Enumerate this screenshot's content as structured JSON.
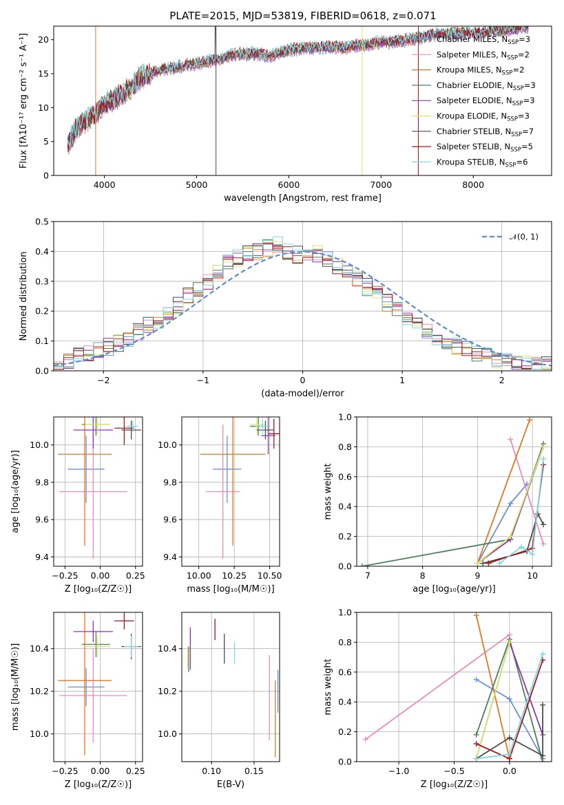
{
  "title": "PLATE=2015, MJD=53819, FIBERID=0618, z=0.071",
  "colors": {
    "Chabrier MILES": "#6a8fd9",
    "Salpeter MILES": "#e88bbd",
    "Kroupa MILES": "#e3761e",
    "Chabrier ELODIE": "#4e7d5c",
    "Salpeter ELODIE": "#8a35b8",
    "Kroupa ELODIE": "#d8e86a",
    "Chabrier STELIB": "#4a4a4a",
    "Salpeter STELIB": "#a81419",
    "Kroupa STELIB": "#7fd8dc"
  },
  "models": [
    "Chabrier MILES",
    "Salpeter MILES",
    "Kroupa MILES",
    "Chabrier ELODIE",
    "Salpeter ELODIE",
    "Kroupa ELODIE",
    "Chabrier STELIB",
    "Salpeter STELIB",
    "Kroupa STELIB"
  ],
  "chart_data": [
    {
      "id": "spectrum",
      "type": "line",
      "title": "PLATE=2015, MJD=53819, FIBERID=0618, z=0.071",
      "xlabel": "wavelength [Angstrom, rest frame]",
      "ylabel": "Flux [fλ10⁻¹⁷ erg cm⁻² s⁻¹ A⁻¹]",
      "xlim": [
        3450,
        8850
      ],
      "ylim": [
        0,
        22
      ],
      "xticks": [
        "4000",
        "5000",
        "6000",
        "7000",
        "8000"
      ],
      "yticks": [
        "0",
        "5",
        "10",
        "15",
        "20"
      ],
      "grid": false,
      "legend_position": "upper-right",
      "series_x": [
        3600,
        3700,
        3800,
        3900,
        4000,
        4200,
        4400,
        4600,
        4800,
        5000,
        5200,
        5400,
        5600,
        5800,
        6000,
        6200,
        6400,
        6600,
        6800,
        7000,
        7200,
        7400,
        7600,
        8000,
        8400,
        8600
      ],
      "series_y": [
        4.5,
        7,
        8,
        9,
        10.5,
        12,
        14.5,
        15.5,
        16,
        16.5,
        17,
        17.8,
        18,
        17.6,
        18.5,
        18.7,
        19,
        18.8,
        19.2,
        19.6,
        19.8,
        20.2,
        20.8,
        21,
        21.5,
        22
      ],
      "legend": [
        {
          "name": "Chabrier MILES, N_SSP=3",
          "model": "Chabrier MILES",
          "base": "Chabrier MILES, N",
          "sub": "SSP",
          "tail": "=3"
        },
        {
          "name": "Salpeter MILES, N_SSP=2",
          "model": "Salpeter MILES",
          "base": "Salpeter MILES, N",
          "sub": "SSP",
          "tail": "=2"
        },
        {
          "name": "Kroupa MILES, N_SSP=2",
          "model": "Kroupa MILES",
          "base": "Kroupa MILES, N",
          "sub": "SSP",
          "tail": "=2"
        },
        {
          "name": "Chabrier ELODIE, N_SSP=3",
          "model": "Chabrier ELODIE",
          "base": "Chabrier ELODIE, N",
          "sub": "SSP",
          "tail": "=3"
        },
        {
          "name": "Salpeter ELODIE, N_SSP=3",
          "model": "Salpeter ELODIE",
          "base": "Salpeter ELODIE, N",
          "sub": "SSP",
          "tail": "=3"
        },
        {
          "name": "Kroupa ELODIE, N_SSP=3",
          "model": "Kroupa ELODIE",
          "base": "Kroupa ELODIE, N",
          "sub": "SSP",
          "tail": "=3"
        },
        {
          "name": "Chabrier STELIB, N_SSP=7",
          "model": "Chabrier STELIB",
          "base": "Chabrier STELIB, N",
          "sub": "SSP",
          "tail": "=7"
        },
        {
          "name": "Salpeter STELIB, N_SSP=5",
          "model": "Salpeter STELIB",
          "base": "Salpeter STELIB, N",
          "sub": "SSP",
          "tail": "=5"
        },
        {
          "name": "Kroupa STELIB, N_SSP=6",
          "model": "Kroupa STELIB",
          "base": "Kroupa STELIB, N",
          "sub": "SSP",
          "tail": "=6"
        }
      ]
    },
    {
      "id": "residuals",
      "type": "area",
      "xlabel": "(data-model)/error",
      "ylabel": "Normed distribution",
      "xlim": [
        -2.5,
        2.5
      ],
      "ylim": [
        0,
        0.5
      ],
      "xticks": [
        "−2",
        "−1",
        "0",
        "1",
        "2"
      ],
      "yticks": [
        "0.0",
        "0.1",
        "0.2",
        "0.3",
        "0.4",
        "0.5"
      ],
      "grid": true,
      "legend_position": "upper-right",
      "reference_curve": "𝒩(0, 1)",
      "bin_width": 0.1,
      "histogram_envelope": [
        0.02,
        0.03,
        0.05,
        0.06,
        0.07,
        0.08,
        0.09,
        0.11,
        0.13,
        0.15,
        0.17,
        0.2,
        0.22,
        0.25,
        0.28,
        0.3,
        0.33,
        0.36,
        0.38,
        0.39,
        0.4,
        0.41,
        0.42,
        0.4,
        0.39,
        0.4,
        0.39,
        0.37,
        0.35,
        0.33,
        0.31,
        0.28,
        0.26,
        0.23,
        0.2,
        0.18,
        0.15,
        0.13,
        0.11,
        0.09,
        0.08,
        0.07,
        0.06,
        0.05,
        0.04,
        0.03,
        0.03,
        0.02,
        0.02,
        0.02
      ]
    },
    {
      "id": "age-vs-Z",
      "type": "scatter",
      "xlabel": "Z [log₁₀(Z/Z☉)]",
      "ylabel": "age  [log₁₀(age/yr)]",
      "xlim": [
        -0.33,
        0.3
      ],
      "ylim": [
        9.35,
        10.15
      ],
      "xticks": [
        "−0.25",
        "0.00",
        "0.25"
      ],
      "yticks": [
        "9.4",
        "9.6",
        "9.8",
        "10.0"
      ],
      "grid": true,
      "errorbars": [
        {
          "model": "Chabrier MILES",
          "x": -0.1,
          "xerr": 0.13,
          "y": 9.87,
          "yerr": 0.18
        },
        {
          "model": "Salpeter MILES",
          "x": -0.05,
          "xerr": 0.24,
          "y": 9.75,
          "yerr": 0.36
        },
        {
          "model": "Kroupa MILES",
          "x": -0.11,
          "xerr": 0.19,
          "y": 9.95,
          "yerr": 0.49
        },
        {
          "model": "Chabrier ELODIE",
          "x": -0.03,
          "xerr": 0.1,
          "y": 10.11,
          "yerr": 0.06
        },
        {
          "model": "Salpeter ELODIE",
          "x": -0.05,
          "xerr": 0.14,
          "y": 10.08,
          "yerr": 0.1
        },
        {
          "model": "Kroupa ELODIE",
          "x": -0.02,
          "xerr": 0.09,
          "y": 10.11,
          "yerr": 0.05
        },
        {
          "model": "Chabrier STELIB",
          "x": 0.22,
          "xerr": 0.07,
          "y": 10.08,
          "yerr": 0.05
        },
        {
          "model": "Salpeter STELIB",
          "x": 0.17,
          "xerr": 0.07,
          "y": 10.09,
          "yerr": 0.09
        },
        {
          "model": "Kroupa STELIB",
          "x": 0.23,
          "xerr": 0.04,
          "y": 10.1,
          "yerr": 0.03
        }
      ]
    },
    {
      "id": "age-vs-mass",
      "type": "scatter",
      "xlabel": "mass [log₁₀(M/M☉)]",
      "ylabel": "",
      "xlim": [
        9.88,
        10.57
      ],
      "ylim": [
        9.35,
        10.15
      ],
      "xticks": [
        "10.00",
        "10.25",
        "10.50"
      ],
      "yticks": [
        "9.4",
        "9.6",
        "9.8",
        "10.0"
      ],
      "grid": true,
      "errorbars": [
        {
          "model": "Chabrier MILES",
          "x": 10.2,
          "xerr": 0.1,
          "y": 9.87,
          "yerr": 0.18
        },
        {
          "model": "Salpeter MILES",
          "x": 10.17,
          "xerr": 0.12,
          "y": 9.75,
          "yerr": 0.36
        },
        {
          "model": "Kroupa MILES",
          "x": 10.24,
          "xerr": 0.23,
          "y": 9.95,
          "yerr": 0.49
        },
        {
          "model": "Chabrier ELODIE",
          "x": 10.42,
          "xerr": 0.06,
          "y": 10.1,
          "yerr": 0.05
        },
        {
          "model": "Salpeter ELODIE",
          "x": 10.49,
          "xerr": 0.05,
          "y": 10.05,
          "yerr": 0.1
        },
        {
          "model": "Kroupa ELODIE",
          "x": 10.41,
          "xerr": 0.05,
          "y": 10.11,
          "yerr": 0.05
        },
        {
          "model": "Chabrier STELIB",
          "x": 10.47,
          "xerr": 0.06,
          "y": 10.08,
          "yerr": 0.05
        },
        {
          "model": "Salpeter STELIB",
          "x": 10.53,
          "xerr": 0.04,
          "y": 10.06,
          "yerr": 0.08
        },
        {
          "model": "Kroupa STELIB",
          "x": 10.45,
          "xerr": 0.05,
          "y": 10.1,
          "yerr": 0.04
        }
      ]
    },
    {
      "id": "massweight-vs-age",
      "type": "line",
      "xlabel": "age  [log₁₀(age/yr)]",
      "ylabel": "mass weight",
      "xlim": [
        6.8,
        10.35
      ],
      "ylim": [
        0,
        1
      ],
      "xticks": [
        "7",
        "8",
        "9",
        "10"
      ],
      "yticks": [
        "0.0",
        "0.2",
        "0.4",
        "0.6",
        "0.8",
        "1.0"
      ],
      "grid": true,
      "series": [
        {
          "model": "Chabrier MILES",
          "x": [
            9.0,
            9.6,
            9.9
          ],
          "y": [
            0.02,
            0.42,
            0.55
          ]
        },
        {
          "model": "Salpeter MILES",
          "x": [
            9.6,
            10.2
          ],
          "y": [
            0.85,
            0.15
          ]
        },
        {
          "model": "Kroupa MILES",
          "x": [
            9.0,
            9.95
          ],
          "y": [
            0.02,
            0.98
          ]
        },
        {
          "model": "Chabrier ELODIE",
          "x": [
            6.9,
            9.6,
            10.2
          ],
          "y": [
            0.0,
            0.18,
            0.82
          ]
        },
        {
          "model": "Salpeter ELODIE",
          "x": [
            9.0,
            9.6,
            10.2
          ],
          "y": [
            0.02,
            0.18,
            0.8
          ]
        },
        {
          "model": "Kroupa ELODIE",
          "x": [
            9.0,
            9.6,
            10.2
          ],
          "y": [
            0.02,
            0.2,
            0.8
          ]
        },
        {
          "model": "Chabrier STELIB",
          "x": [
            9.1,
            9.9,
            10.1,
            10.2
          ],
          "y": [
            0.02,
            0.1,
            0.35,
            0.28
          ]
        },
        {
          "model": "Salpeter STELIB",
          "x": [
            9.2,
            10.0,
            10.2
          ],
          "y": [
            0.02,
            0.12,
            0.68
          ]
        },
        {
          "model": "Kroupa STELIB",
          "x": [
            9.4,
            9.8,
            10.0,
            10.2
          ],
          "y": [
            0.02,
            0.13,
            0.08,
            0.72
          ]
        }
      ]
    },
    {
      "id": "mass-vs-Z",
      "type": "scatter",
      "xlabel": "Z [log₁₀(Z/Z☉)]",
      "ylabel": "mass [log₁₀(M/M☉)]",
      "xlim": [
        -0.33,
        0.3
      ],
      "ylim": [
        9.87,
        10.57
      ],
      "xticks": [
        "−0.25",
        "0.00",
        "0.25"
      ],
      "yticks": [
        "10.0",
        "10.2",
        "10.4"
      ],
      "grid": true,
      "errorbars": [
        {
          "model": "Chabrier MILES",
          "x": -0.1,
          "xerr": 0.13,
          "y": 10.22,
          "yerr": 0.09
        },
        {
          "model": "Salpeter MILES",
          "x": -0.05,
          "xerr": 0.24,
          "y": 10.18,
          "yerr": 0.22
        },
        {
          "model": "Kroupa MILES",
          "x": -0.11,
          "xerr": 0.19,
          "y": 10.25,
          "yerr": 0.35
        },
        {
          "model": "Chabrier ELODIE",
          "x": -0.03,
          "xerr": 0.1,
          "y": 10.42,
          "yerr": 0.06
        },
        {
          "model": "Salpeter ELODIE",
          "x": -0.05,
          "xerr": 0.14,
          "y": 10.48,
          "yerr": 0.05
        },
        {
          "model": "Kroupa ELODIE",
          "x": -0.02,
          "xerr": 0.09,
          "y": 10.41,
          "yerr": 0.05
        },
        {
          "model": "Chabrier STELIB",
          "x": 0.22,
          "xerr": 0.07,
          "y": 10.41,
          "yerr": 0.06
        },
        {
          "model": "Salpeter STELIB",
          "x": 0.17,
          "xerr": 0.07,
          "y": 10.53,
          "yerr": 0.04
        },
        {
          "model": "Kroupa STELIB",
          "x": 0.22,
          "xerr": 0.05,
          "y": 10.41,
          "yerr": 0.05
        }
      ]
    },
    {
      "id": "mass-vs-ebv",
      "type": "scatter",
      "xlabel": "E(B-V)",
      "ylabel": "",
      "xlim": [
        0.065,
        0.18
      ],
      "ylim": [
        9.87,
        10.57
      ],
      "xticks": [
        "0.10",
        "0.15"
      ],
      "yticks": [
        "10.0",
        "10.2",
        "10.4"
      ],
      "grid": true,
      "errorbars": [
        {
          "model": "Chabrier MILES",
          "x": 0.178,
          "xerr": 0,
          "y": 10.2,
          "yerr": 0.1
        },
        {
          "model": "Salpeter MILES",
          "x": 0.168,
          "xerr": 0,
          "y": 10.17,
          "yerr": 0.2
        },
        {
          "model": "Kroupa MILES",
          "x": 0.175,
          "xerr": 0,
          "y": 10.07,
          "yerr": 0.18
        },
        {
          "model": "Chabrier ELODIE",
          "x": 0.073,
          "xerr": 0,
          "y": 10.35,
          "yerr": 0.06
        },
        {
          "model": "Salpeter ELODIE",
          "x": 0.075,
          "xerr": 0,
          "y": 10.4,
          "yerr": 0.1
        },
        {
          "model": "Kroupa ELODIE",
          "x": 0.072,
          "xerr": 0,
          "y": 10.36,
          "yerr": 0.05
        },
        {
          "model": "Chabrier STELIB",
          "x": 0.115,
          "xerr": 0,
          "y": 10.4,
          "yerr": 0.07
        },
        {
          "model": "Salpeter STELIB",
          "x": 0.104,
          "xerr": 0,
          "y": 10.49,
          "yerr": 0.05
        },
        {
          "model": "Kroupa STELIB",
          "x": 0.127,
          "xerr": 0,
          "y": 10.38,
          "yerr": 0.05
        }
      ]
    },
    {
      "id": "massweight-vs-Z",
      "type": "line",
      "xlabel": "Z [log₁₀(Z/Z☉)]",
      "ylabel": "mass weight",
      "xlim": [
        -1.38,
        0.38
      ],
      "ylim": [
        0,
        1
      ],
      "xticks": [
        "−1.0",
        "−0.5",
        "0.0"
      ],
      "yticks": [
        "0.0",
        "0.2",
        "0.4",
        "0.6",
        "0.8",
        "1.0"
      ],
      "grid": true,
      "series": [
        {
          "model": "Chabrier MILES",
          "x": [
            -0.3,
            0.0,
            0.3
          ],
          "y": [
            0.55,
            0.42,
            0.02
          ]
        },
        {
          "model": "Salpeter MILES",
          "x": [
            -1.3,
            0.0
          ],
          "y": [
            0.15,
            0.85
          ]
        },
        {
          "model": "Kroupa MILES",
          "x": [
            -0.3,
            0.0
          ],
          "y": [
            0.98,
            0.02
          ]
        },
        {
          "model": "Chabrier ELODIE",
          "x": [
            -0.3,
            0.0,
            0.3
          ],
          "y": [
            0.18,
            0.82,
            0.0
          ]
        },
        {
          "model": "Salpeter ELODIE",
          "x": [
            -0.3,
            0.0,
            0.3
          ],
          "y": [
            0.02,
            0.8,
            0.18
          ]
        },
        {
          "model": "Kroupa ELODIE",
          "x": [
            -0.3,
            0.0
          ],
          "y": [
            0.02,
            0.8
          ]
        },
        {
          "model": "Chabrier STELIB",
          "x": [
            -0.3,
            0.0,
            0.3,
            0.3
          ],
          "y": [
            0.02,
            0.16,
            0.04,
            0.38
          ]
        },
        {
          "model": "Salpeter STELIB",
          "x": [
            -0.3,
            0.0,
            0.3
          ],
          "y": [
            0.12,
            0.02,
            0.68
          ]
        },
        {
          "model": "Kroupa STELIB",
          "x": [
            -0.3,
            0.0,
            0.3
          ],
          "y": [
            0.02,
            0.05,
            0.72
          ]
        }
      ]
    }
  ]
}
